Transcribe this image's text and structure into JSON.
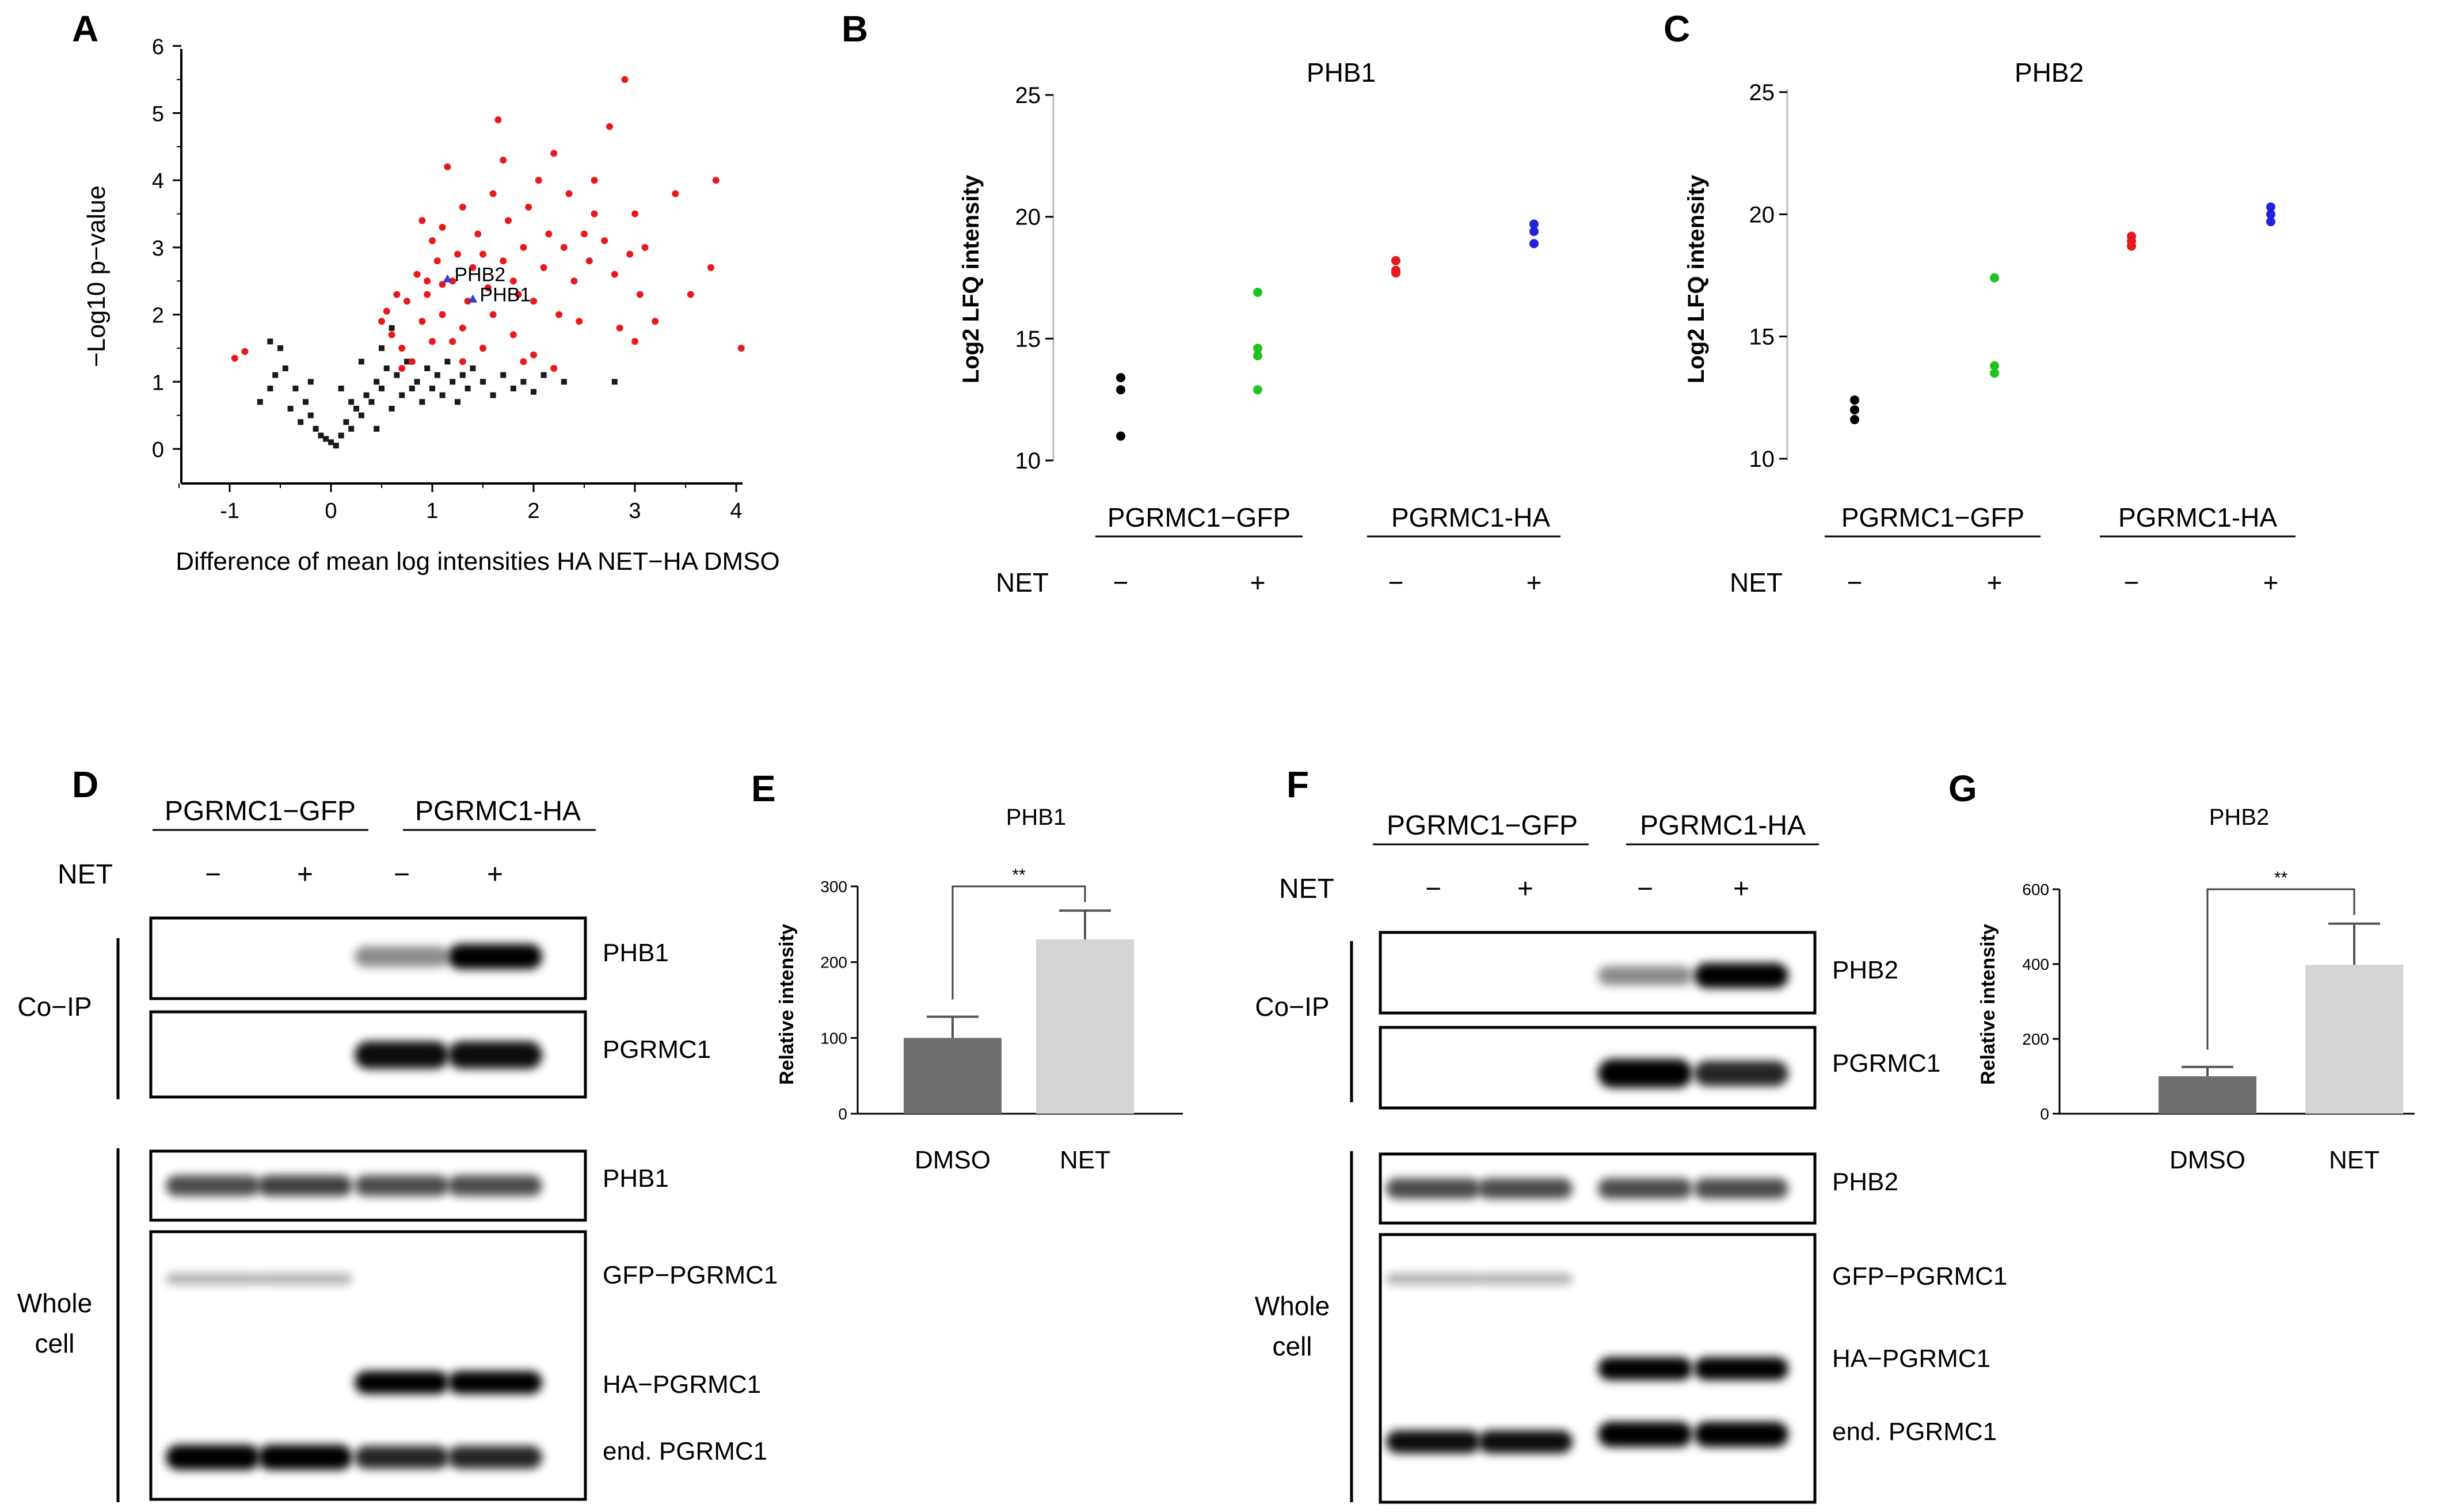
{
  "panels": {
    "A": "A",
    "B": "B",
    "C": "C",
    "D": "D",
    "E": "E",
    "F": "F",
    "G": "G"
  },
  "chart_data": [
    {
      "panel": "A",
      "type": "scatter",
      "title": "",
      "xlabel": "Difference of mean log intensities HA NET−HA DMSO",
      "ylabel": "−Log10 p−value",
      "xlim": [
        -1.5,
        4.3
      ],
      "ylim": [
        -0.2,
        6
      ],
      "xticks": [
        -1,
        0,
        1,
        2,
        3,
        4
      ],
      "yticks": [
        0,
        1,
        2,
        3,
        4,
        5,
        6
      ],
      "colors": {
        "significant": "#e8191c",
        "nonsignificant": "#1a1a1a"
      },
      "labels": [
        {
          "text": "PHB2",
          "x": 1.15,
          "y": 2.6
        },
        {
          "text": "PHB1",
          "x": 1.4,
          "y": 2.3
        }
      ],
      "significant": [
        [
          -0.95,
          1.35
        ],
        [
          -0.85,
          1.45
        ],
        [
          0.5,
          1.9
        ],
        [
          0.55,
          2.05
        ],
        [
          0.6,
          1.7
        ],
        [
          0.65,
          2.3
        ],
        [
          0.7,
          1.5
        ],
        [
          0.75,
          2.2
        ],
        [
          0.8,
          1.3
        ],
        [
          0.85,
          2.6
        ],
        [
          0.9,
          3.4
        ],
        [
          0.9,
          1.9
        ],
        [
          0.95,
          2.3
        ],
        [
          1.0,
          3.1
        ],
        [
          1.0,
          1.6
        ],
        [
          1.05,
          2.8
        ],
        [
          1.1,
          3.3
        ],
        [
          1.1,
          2.0
        ],
        [
          1.15,
          4.2
        ],
        [
          1.2,
          1.6
        ],
        [
          1.2,
          2.5
        ],
        [
          1.25,
          2.9
        ],
        [
          1.3,
          3.6
        ],
        [
          1.3,
          1.8
        ],
        [
          1.35,
          2.2
        ],
        [
          1.4,
          2.7
        ],
        [
          1.45,
          3.2
        ],
        [
          1.5,
          1.5
        ],
        [
          1.55,
          2.4
        ],
        [
          1.6,
          3.8
        ],
        [
          1.6,
          2.0
        ],
        [
          1.65,
          4.9
        ],
        [
          1.7,
          2.8
        ],
        [
          1.7,
          4.3
        ],
        [
          1.75,
          3.4
        ],
        [
          1.8,
          1.7
        ],
        [
          1.85,
          2.3
        ],
        [
          1.9,
          3.0
        ],
        [
          1.95,
          3.6
        ],
        [
          2.0,
          2.2
        ],
        [
          2.0,
          1.4
        ],
        [
          2.05,
          4.0
        ],
        [
          2.1,
          2.7
        ],
        [
          2.15,
          3.2
        ],
        [
          2.2,
          4.4
        ],
        [
          2.25,
          2.0
        ],
        [
          2.3,
          3.0
        ],
        [
          2.35,
          3.8
        ],
        [
          2.4,
          2.5
        ],
        [
          2.45,
          1.9
        ],
        [
          2.5,
          3.2
        ],
        [
          2.55,
          2.8
        ],
        [
          2.6,
          4.0
        ],
        [
          2.7,
          3.1
        ],
        [
          2.75,
          4.8
        ],
        [
          2.8,
          2.6
        ],
        [
          2.85,
          1.8
        ],
        [
          2.9,
          5.5
        ],
        [
          2.95,
          2.9
        ],
        [
          3.0,
          3.5
        ],
        [
          3.0,
          1.6
        ],
        [
          3.05,
          2.3
        ],
        [
          3.2,
          1.9
        ],
        [
          3.4,
          3.8
        ],
        [
          3.55,
          2.3
        ],
        [
          3.75,
          2.7
        ],
        [
          3.8,
          4.0
        ],
        [
          4.05,
          1.5
        ],
        [
          1.1,
          2.45
        ],
        [
          1.3,
          1.3
        ],
        [
          0.7,
          1.2
        ],
        [
          1.9,
          1.3
        ],
        [
          2.2,
          1.2
        ],
        [
          1.5,
          2.9
        ],
        [
          0.95,
          2.5
        ],
        [
          1.8,
          2.5
        ],
        [
          2.6,
          3.5
        ],
        [
          3.1,
          3.0
        ]
      ],
      "nonsignificant": [
        [
          -0.7,
          0.7
        ],
        [
          -0.6,
          0.9
        ],
        [
          -0.55,
          1.1
        ],
        [
          -0.5,
          1.5
        ],
        [
          -0.45,
          1.2
        ],
        [
          -0.4,
          0.6
        ],
        [
          -0.35,
          0.9
        ],
        [
          -0.3,
          0.4
        ],
        [
          -0.25,
          0.7
        ],
        [
          -0.2,
          0.5
        ],
        [
          -0.15,
          0.3
        ],
        [
          -0.1,
          0.2
        ],
        [
          -0.05,
          0.15
        ],
        [
          0.0,
          0.1
        ],
        [
          0.05,
          0.05
        ],
        [
          0.1,
          0.2
        ],
        [
          0.15,
          0.4
        ],
        [
          0.2,
          0.3
        ],
        [
          0.25,
          0.6
        ],
        [
          0.3,
          0.5
        ],
        [
          0.35,
          0.8
        ],
        [
          0.4,
          0.7
        ],
        [
          0.45,
          1.0
        ],
        [
          0.5,
          0.9
        ],
        [
          0.55,
          1.2
        ],
        [
          0.6,
          0.6
        ],
        [
          0.65,
          1.1
        ],
        [
          0.7,
          0.8
        ],
        [
          0.75,
          1.3
        ],
        [
          0.8,
          0.9
        ],
        [
          0.85,
          1.0
        ],
        [
          0.9,
          0.7
        ],
        [
          0.95,
          1.2
        ],
        [
          1.0,
          0.9
        ],
        [
          1.05,
          1.1
        ],
        [
          1.1,
          0.8
        ],
        [
          1.15,
          1.3
        ],
        [
          1.2,
          1.0
        ],
        [
          1.25,
          0.7
        ],
        [
          1.3,
          1.1
        ],
        [
          1.35,
          0.9
        ],
        [
          1.4,
          1.2
        ],
        [
          1.5,
          1.0
        ],
        [
          1.6,
          0.8
        ],
        [
          1.7,
          1.1
        ],
        [
          1.8,
          0.9
        ],
        [
          1.9,
          1.0
        ],
        [
          2.0,
          0.85
        ],
        [
          2.1,
          1.1
        ],
        [
          2.3,
          1.0
        ],
        [
          2.8,
          1.0
        ],
        [
          -0.6,
          1.6
        ],
        [
          0.2,
          0.7
        ],
        [
          0.5,
          1.5
        ],
        [
          0.3,
          1.3
        ],
        [
          -0.2,
          1.0
        ],
        [
          0.1,
          0.9
        ],
        [
          0.45,
          0.3
        ],
        [
          0.6,
          1.8
        ]
      ]
    },
    {
      "panel": "B",
      "type": "scatter",
      "title": "PHB1",
      "ylabel": "Log2 LFQ intensity",
      "ylim": [
        10,
        25
      ],
      "yticks": [
        10,
        15,
        20,
        25
      ],
      "categories": [
        "−",
        "+",
        "−",
        "+"
      ],
      "series": [
        {
          "name": "PGRMC1−GFP −",
          "color": "#000000",
          "values": [
            13.4,
            12.9,
            11.0
          ]
        },
        {
          "name": "PGRMC1−GFP +",
          "color": "#22c224",
          "values": [
            16.9,
            14.6,
            14.3,
            12.9
          ]
        },
        {
          "name": "PGRMC1-HA −",
          "color": "#e8191c",
          "values": [
            18.2,
            17.8,
            17.7
          ]
        },
        {
          "name": "PGRMC1-HA +",
          "color": "#1f23e0",
          "values": [
            19.7,
            19.4,
            18.9
          ]
        }
      ],
      "groups": [
        "PGRMC1−GFP",
        "PGRMC1-HA"
      ],
      "treatment_label": "NET"
    },
    {
      "panel": "C",
      "type": "scatter",
      "title": "PHB2",
      "ylabel": "Log2 LFQ intensity",
      "ylim": [
        10,
        25
      ],
      "yticks": [
        10,
        15,
        20,
        25
      ],
      "categories": [
        "−",
        "+",
        "−",
        "+"
      ],
      "series": [
        {
          "name": "PGRMC1−GFP −",
          "color": "#000000",
          "values": [
            12.4,
            12.0,
            11.6
          ]
        },
        {
          "name": "PGRMC1−GFP +",
          "color": "#22c224",
          "values": [
            17.4,
            13.8,
            13.5
          ]
        },
        {
          "name": "PGRMC1-HA −",
          "color": "#e8191c",
          "values": [
            19.1,
            18.9,
            18.7
          ]
        },
        {
          "name": "PGRMC1-HA +",
          "color": "#1f23e0",
          "values": [
            20.3,
            20.0,
            19.7
          ]
        }
      ],
      "groups": [
        "PGRMC1−GFP",
        "PGRMC1-HA"
      ],
      "treatment_label": "NET"
    },
    {
      "panel": "E",
      "type": "bar",
      "title": "PHB1",
      "ylabel": "Relative intensity",
      "categories": [
        "DMSO",
        "NET"
      ],
      "values": [
        100,
        230
      ],
      "errors": [
        28,
        38
      ],
      "ylim": [
        0,
        300
      ],
      "yticks": [
        0,
        100,
        200,
        300
      ],
      "colors": [
        "#6f6f6f",
        "#d4d4d4"
      ],
      "significance": "**"
    },
    {
      "panel": "G",
      "type": "bar",
      "title": "PHB2",
      "ylabel": "Relative intensity",
      "categories": [
        "DMSO",
        "NET"
      ],
      "values": [
        100,
        398
      ],
      "errors": [
        25,
        110
      ],
      "ylim": [
        0,
        600
      ],
      "yticks": [
        0,
        200,
        400,
        600
      ],
      "colors": [
        "#6f6f6f",
        "#d4d4d4"
      ],
      "significance": "**"
    }
  ],
  "blot_D": {
    "groups": [
      "PGRMC1−GFP",
      "PGRMC1-HA"
    ],
    "treatment_label": "NET",
    "signs": [
      "−",
      "+",
      "−",
      "+"
    ],
    "sections": [
      "Co−IP",
      "Whole\ncell"
    ],
    "bands": [
      "PHB1",
      "PGRMC1",
      "PHB1",
      "GFP−PGRMC1",
      "HA−PGRMC1",
      "end. PGRMC1"
    ]
  },
  "blot_F": {
    "groups": [
      "PGRMC1−GFP",
      "PGRMC1-HA"
    ],
    "treatment_label": "NET",
    "signs": [
      "−",
      "+",
      "−",
      "+"
    ],
    "sections": [
      "Co−IP",
      "Whole\ncell"
    ],
    "bands": [
      "PHB2",
      "PGRMC1",
      "PHB2",
      "GFP−PGRMC1",
      "HA−PGRMC1",
      "end. PGRMC1"
    ]
  }
}
